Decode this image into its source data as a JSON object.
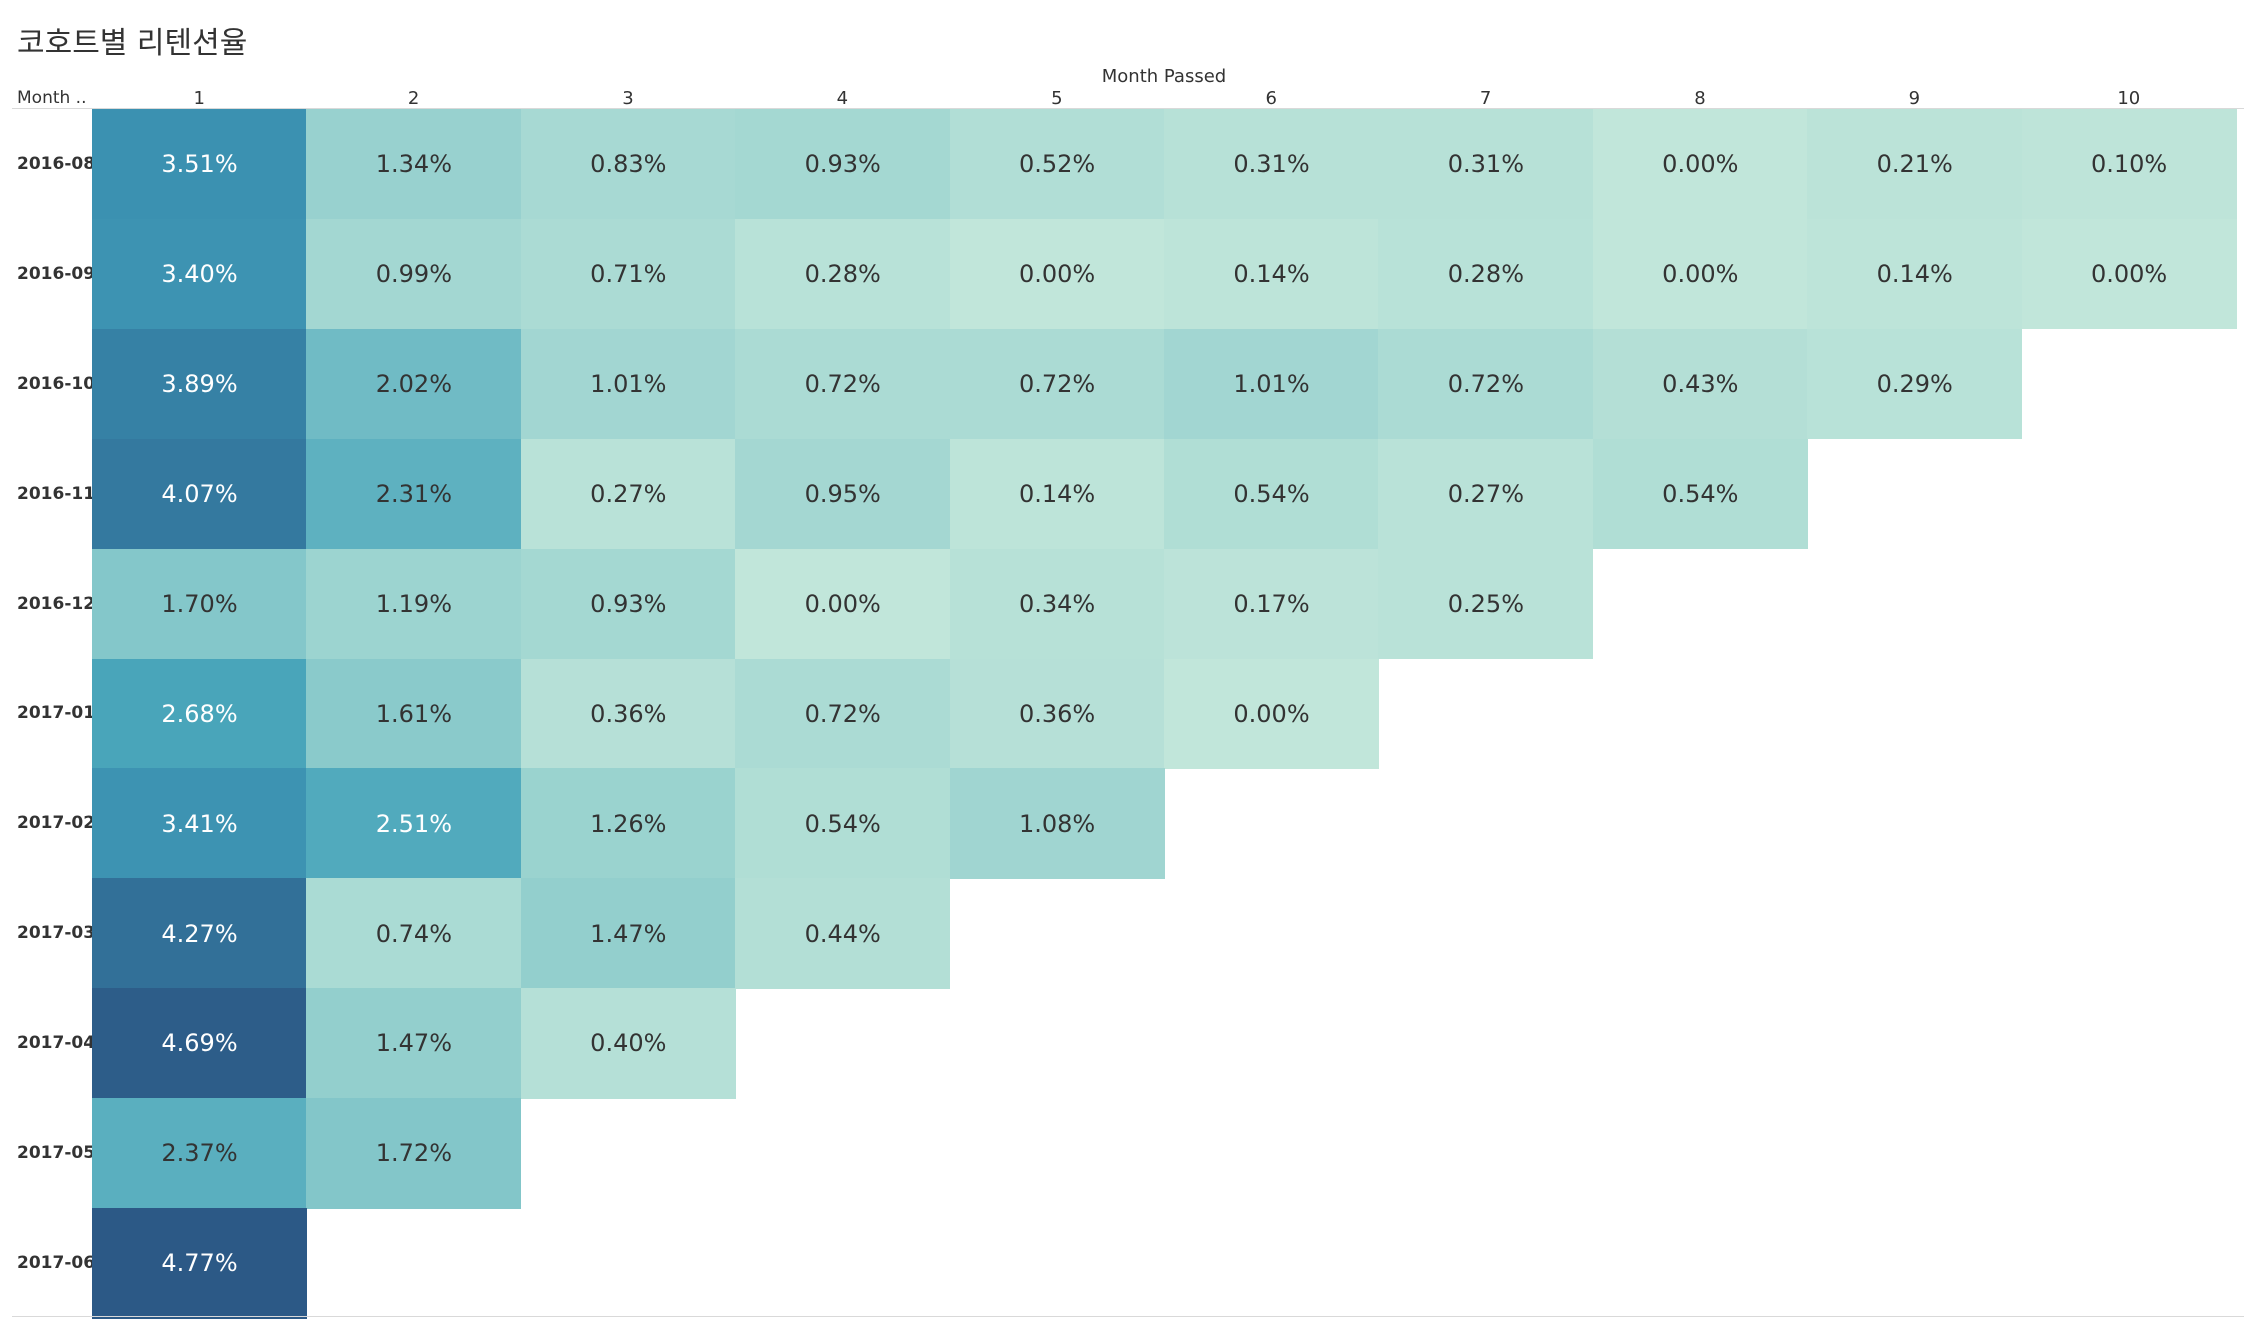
{
  "title": "코호트별 리텐션율",
  "chart_data": {
    "type": "heatmap",
    "title": "코호트별 리텐션율",
    "xlabel": "Month Passed",
    "ylabel": "Month ..",
    "x": [
      "1",
      "2",
      "3",
      "4",
      "5",
      "6",
      "7",
      "8",
      "9",
      "10"
    ],
    "y": [
      "2016-08",
      "2016-09",
      "2016-10",
      "2016-11",
      "2016-12",
      "2017-01",
      "2017-02",
      "2017-03",
      "2017-04",
      "2017-05",
      "2017-06"
    ],
    "values": [
      [
        "3.51%",
        "1.34%",
        "0.83%",
        "0.93%",
        "0.52%",
        "0.31%",
        "0.31%",
        "0.00%",
        "0.21%",
        "0.10%"
      ],
      [
        "3.40%",
        "0.99%",
        "0.71%",
        "0.28%",
        "0.00%",
        "0.14%",
        "0.28%",
        "0.00%",
        "0.14%",
        "0.00%"
      ],
      [
        "3.89%",
        "2.02%",
        "1.01%",
        "0.72%",
        "0.72%",
        "1.01%",
        "0.72%",
        "0.43%",
        "0.29%"
      ],
      [
        "4.07%",
        "2.31%",
        "0.27%",
        "0.95%",
        "0.14%",
        "0.54%",
        "0.27%",
        "0.54%"
      ],
      [
        "1.70%",
        "1.19%",
        "0.93%",
        "0.00%",
        "0.34%",
        "0.17%",
        "0.25%"
      ],
      [
        "2.68%",
        "1.61%",
        "0.36%",
        "0.72%",
        "0.36%",
        "0.00%"
      ],
      [
        "3.41%",
        "2.51%",
        "1.26%",
        "0.54%",
        "1.08%"
      ],
      [
        "4.27%",
        "0.74%",
        "1.47%",
        "0.44%"
      ],
      [
        "4.69%",
        "1.47%",
        "0.40%"
      ],
      [
        "2.37%",
        "1.72%"
      ],
      [
        "4.77%"
      ]
    ],
    "color_scale": {
      "low": "#c1e6da",
      "high": "#2c5986",
      "min_value": 0,
      "max_value": 4.77
    },
    "legend": "none",
    "grid": false
  }
}
